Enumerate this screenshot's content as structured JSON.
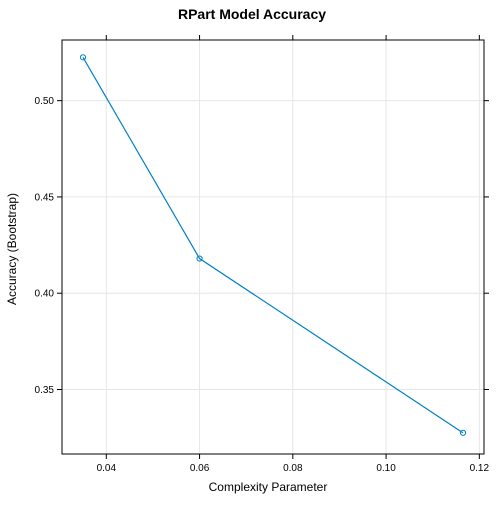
{
  "chart_data": {
    "type": "line",
    "title": "RPart Model Accuracy",
    "xlabel": "Complexity Parameter",
    "ylabel": "Accuracy (Bootstrap)",
    "xlim": [
      0.0305,
      0.121
    ],
    "ylim": [
      0.3165,
      0.5315
    ],
    "x_ticks": [
      0.04,
      0.06,
      0.08,
      0.1,
      0.12
    ],
    "x_tick_labels": [
      "0.04",
      "0.06",
      "0.08",
      "0.10",
      "0.12"
    ],
    "y_ticks": [
      0.35,
      0.4,
      0.45,
      0.5
    ],
    "y_tick_labels": [
      "0.35",
      "0.40",
      "0.45",
      "0.50"
    ],
    "grid": true,
    "series": [
      {
        "x": [
          0.035,
          0.06,
          0.1165
        ],
        "values": [
          0.5225,
          0.418,
          0.3275
        ],
        "color": "#0080C6"
      }
    ]
  }
}
